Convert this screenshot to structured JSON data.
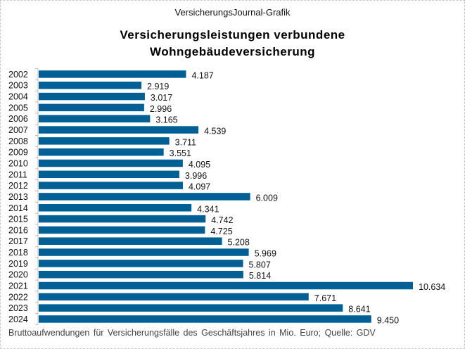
{
  "header": {
    "source": "VersicherungsJournal-Grafik",
    "title_line1": "Versicherungsleistungen  verbundene",
    "title_line2": "Wohngebäudeversicherung"
  },
  "footnote": "Bruttoaufwendungen  für Versicherungsfälle  des Geschäftsjahres  in Mio. Euro; Quelle: GDV",
  "colors": {
    "bar": "#005f94",
    "axis": "#bfbfbf"
  },
  "chart_data": {
    "type": "bar",
    "orientation": "horizontal",
    "title": "Versicherungsleistungen verbundene Wohngebäudeversicherung",
    "xlabel": "",
    "ylabel": "",
    "unit": "Mio. Euro",
    "xlim": [
      0,
      10634
    ],
    "grid": false,
    "legend": "none",
    "categories": [
      "2002",
      "2003",
      "2004",
      "2005",
      "2006",
      "2007",
      "2008",
      "2009",
      "2010",
      "2011",
      "2012",
      "2013",
      "2014",
      "2015",
      "2016",
      "2017",
      "2018",
      "2019",
      "2020",
      "2021",
      "2022",
      "2023",
      "2024"
    ],
    "values": [
      4187,
      2919,
      3017,
      2996,
      3165,
      4539,
      3711,
      3551,
      4095,
      3996,
      4097,
      6009,
      4341,
      4742,
      4725,
      5208,
      5969,
      5807,
      5814,
      10634,
      7671,
      8641,
      9450
    ],
    "labels": [
      "4.187",
      "2.919",
      "3.017",
      "2.996",
      "3.165",
      "4.539",
      "3.711",
      "3.551",
      "4.095",
      "3.996",
      "4.097",
      "6.009",
      "4.341",
      "4.742",
      "4.725",
      "5.208",
      "5.969",
      "5.807",
      "5.814",
      "10.634",
      "7.671",
      "8.641",
      "9.450"
    ]
  }
}
